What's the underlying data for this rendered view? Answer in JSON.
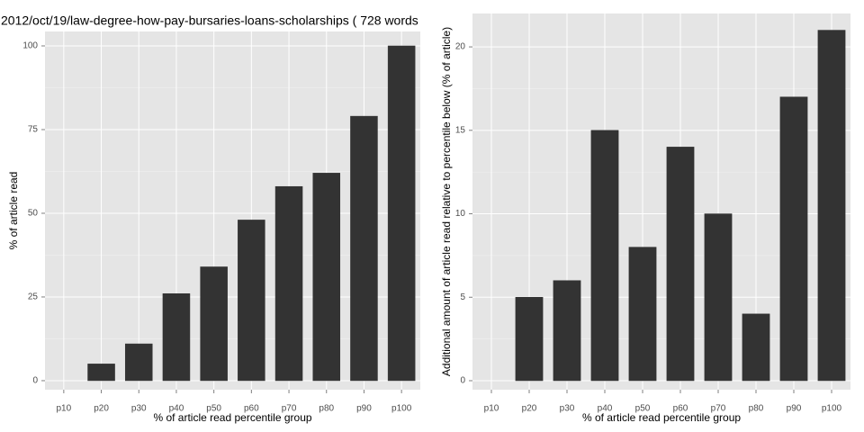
{
  "chart_data": [
    {
      "type": "bar",
      "title": "2012/oct/19/law-degree-how-pay-bursaries-loans-scholarships ( 728 words",
      "x_label": "% of article read percentile group",
      "y_label": "% of article read",
      "categories": [
        "p10",
        "p20",
        "p30",
        "p40",
        "p50",
        "p60",
        "p70",
        "p80",
        "p90",
        "p100"
      ],
      "values": [
        0,
        5,
        11,
        26,
        34,
        48,
        58,
        62,
        79,
        100
      ],
      "color": "#333333",
      "ylim": [
        -2.7,
        104.3
      ],
      "yticks": [
        0,
        25,
        50,
        75,
        100
      ],
      "grid": true
    },
    {
      "type": "bar",
      "x_label": "% of article read percentile group",
      "y_label": "Additional amount of article read relative to percentile below (% of article)",
      "categories": [
        "p10",
        "p20",
        "p30",
        "p40",
        "p50",
        "p60",
        "p70",
        "p80",
        "p90",
        "p100"
      ],
      "values": [
        0,
        5,
        6,
        15,
        8,
        14,
        10,
        4,
        17,
        21
      ],
      "color": "#333333",
      "ylim": [
        -0.54,
        22.0
      ],
      "yticks": [
        0,
        5,
        10,
        15,
        20
      ],
      "grid": true
    }
  ]
}
